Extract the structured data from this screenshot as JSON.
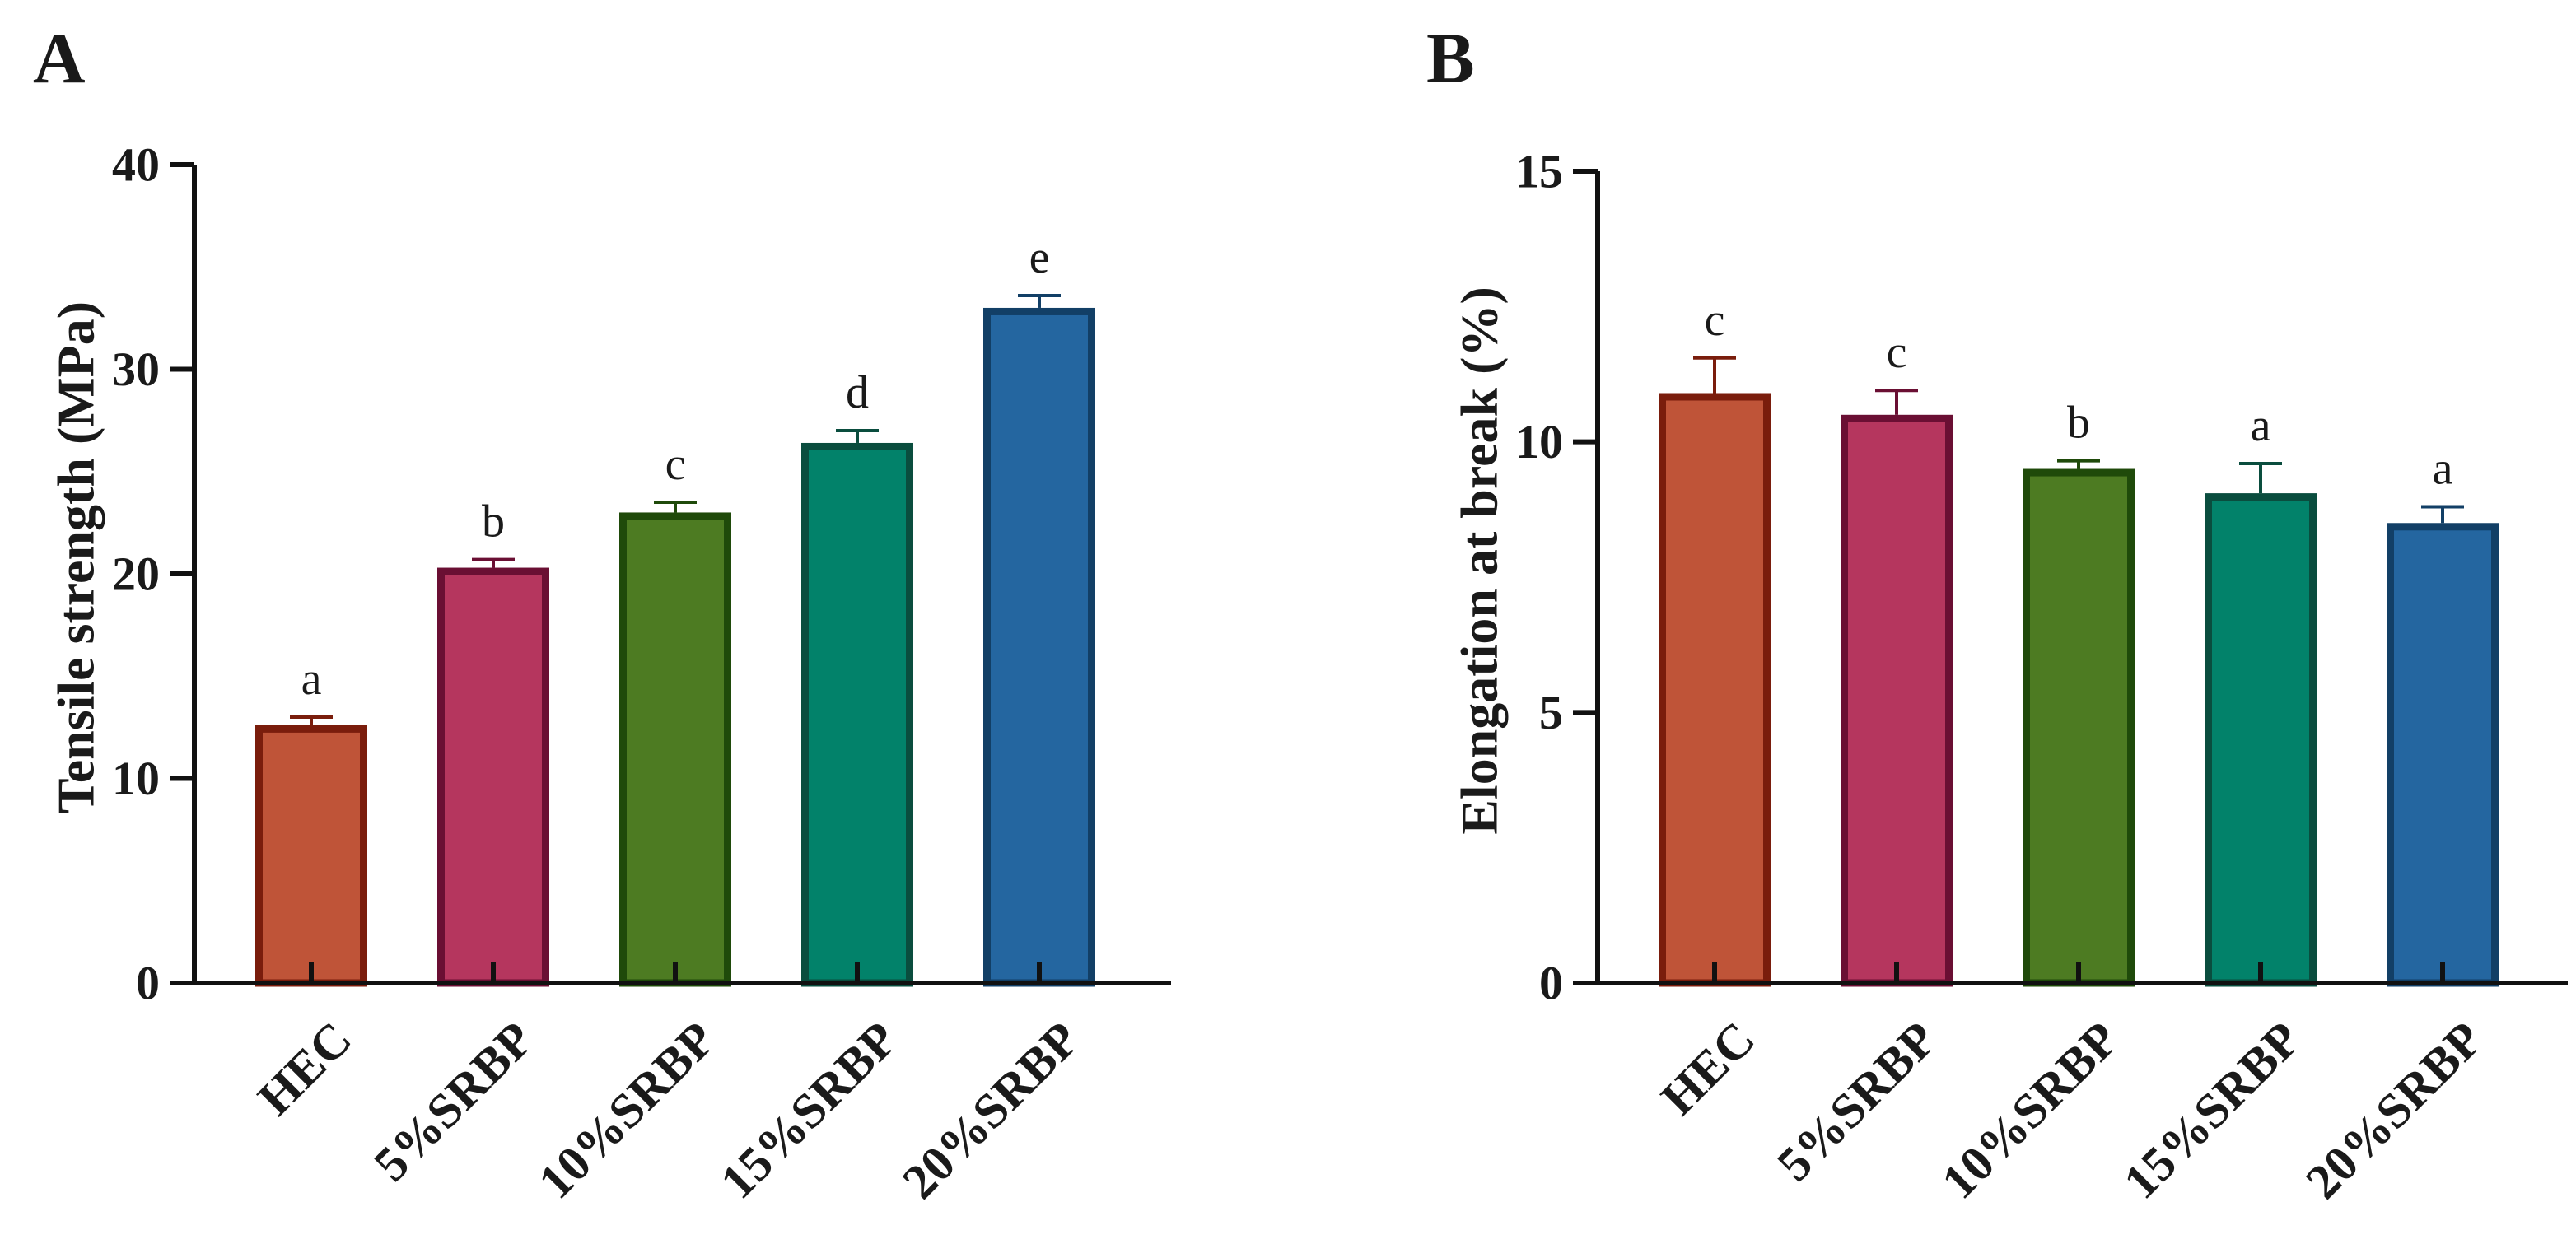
{
  "chart_data": [
    {
      "panel": "A",
      "type": "bar",
      "title": "",
      "xlabel": "",
      "ylabel": "Tensile strength (MPa)",
      "ylim": [
        0,
        40
      ],
      "yticks": [
        0,
        10,
        20,
        30,
        40
      ],
      "categories": [
        "HEC",
        "5%SRBP",
        "10%SRBP",
        "15%SRBP",
        "20%SRBP"
      ],
      "values": [
        12.6,
        20.3,
        23.0,
        26.4,
        33.0
      ],
      "errors": [
        0.4,
        0.4,
        0.5,
        0.6,
        0.6
      ],
      "significance": [
        "a",
        "b",
        "c",
        "d",
        "e"
      ],
      "fill_colors": [
        "#bf5438",
        "#b5365e",
        "#4d7b22",
        "#02826a",
        "#2466a0"
      ],
      "edge_colors": [
        "#7a1d0c",
        "#6a0f33",
        "#1f4a0a",
        "#0a4d3e",
        "#123f66"
      ],
      "grid": false,
      "legend": "none"
    },
    {
      "panel": "B",
      "type": "bar",
      "title": "",
      "xlabel": "",
      "ylabel": "Elongation at break (%)",
      "ylim": [
        0,
        15
      ],
      "yticks": [
        0,
        5,
        10,
        15
      ],
      "categories": [
        "HEC",
        "5%SRBP",
        "10%SRBP",
        "15%SRBP",
        "20%SRBP"
      ],
      "values": [
        10.9,
        10.5,
        9.5,
        9.05,
        8.5
      ],
      "errors": [
        0.65,
        0.45,
        0.15,
        0.55,
        0.3
      ],
      "significance": [
        "c",
        "c",
        "b",
        "a",
        "a"
      ],
      "fill_colors": [
        "#bf5438",
        "#b5365e",
        "#4d7b22",
        "#02826a",
        "#2466a0"
      ],
      "edge_colors": [
        "#7a1d0c",
        "#6a0f33",
        "#1f4a0a",
        "#0a4d3e",
        "#123f66"
      ],
      "grid": false,
      "legend": "none"
    }
  ]
}
